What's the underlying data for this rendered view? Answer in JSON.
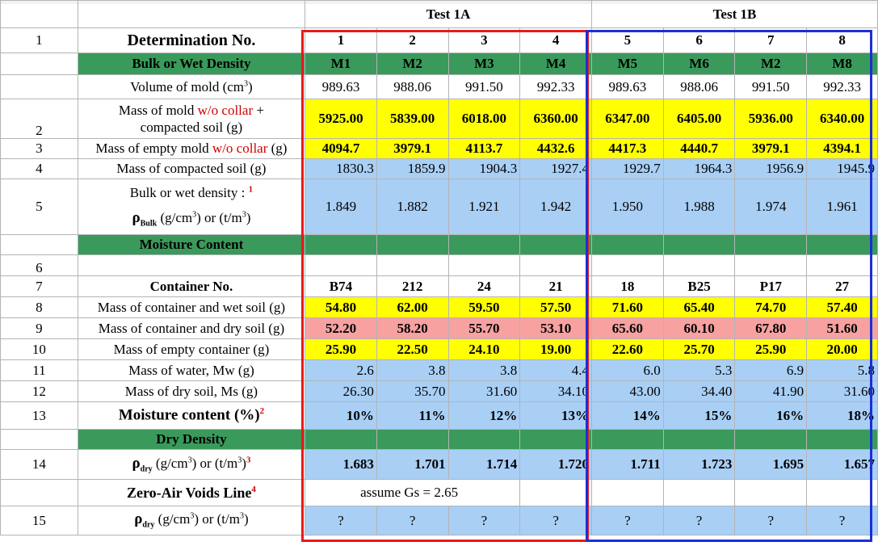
{
  "headers": {
    "test_a": "Test 1A",
    "test_b": "Test 1B",
    "row1_label": "Determination No.",
    "det_numbers": [
      "1",
      "2",
      "3",
      "4",
      "5",
      "6",
      "7",
      "8"
    ]
  },
  "bulk_section": {
    "title": "Bulk or Wet Density",
    "molds": [
      "M1",
      "M2",
      "M3",
      "M4",
      "M5",
      "M6",
      "M2",
      "M8"
    ],
    "volume_label": "Volume of mold (cm",
    "volume_unit_sup": "3",
    "volume_label_end": ")",
    "volumes": [
      "989.63",
      "988.06",
      "991.50",
      "992.33",
      "989.63",
      "988.06",
      "991.50",
      "992.33"
    ],
    "mass_mold_line1": "Mass of mold ",
    "mass_mold_red": "w/o collar",
    "mass_mold_line1_end": " +",
    "mass_mold_line2": "compacted soil (g)",
    "mass_mold_values": [
      "5925.00",
      "5839.00",
      "6018.00",
      "6360.00",
      "6347.00",
      "6405.00",
      "5936.00",
      "6340.00"
    ],
    "empty_mold_label": "Mass of empty mold ",
    "empty_mold_red": "w/o collar",
    "empty_mold_end": " (g)",
    "empty_mold_values": [
      "4094.7",
      "3979.1",
      "4113.7",
      "4432.6",
      "4417.3",
      "4440.7",
      "3979.1",
      "4394.1"
    ],
    "compacted_label": "Mass of compacted soil (g)",
    "compacted_values": [
      "1830.3",
      "1859.9",
      "1904.3",
      "1927.4",
      "1929.7",
      "1964.3",
      "1956.9",
      "1945.9"
    ],
    "density_label": "Bulk or wet density : ",
    "density_note": "1",
    "density_symbol": "ρ",
    "density_sub": "Bulk",
    "density_units": " (g/cm",
    "density_units_mid": ") or (t/m",
    "density_units_end": ")",
    "density_values": [
      "1.849",
      "1.882",
      "1.921",
      "1.942",
      "1.950",
      "1.988",
      "1.974",
      "1.961"
    ]
  },
  "moisture_section": {
    "title": "Moisture Content",
    "container_label": "Container No.",
    "containers": [
      "B74",
      "212",
      "24",
      "21",
      "18",
      "B25",
      "P17",
      "27"
    ],
    "wet_label": "Mass of container and wet soil (g)",
    "wet_values": [
      "54.80",
      "62.00",
      "59.50",
      "57.50",
      "71.60",
      "65.40",
      "74.70",
      "57.40"
    ],
    "dry_label": "Mass of container and dry soil (g)",
    "dry_values": [
      "52.20",
      "58.20",
      "55.70",
      "53.10",
      "65.60",
      "60.10",
      "67.80",
      "51.60"
    ],
    "empty_label": "Mass of empty container (g)",
    "empty_values": [
      "25.90",
      "22.50",
      "24.10",
      "19.00",
      "22.60",
      "25.70",
      "25.90",
      "20.00"
    ],
    "water_label": "Mass of water, Mw (g)",
    "water_values": [
      "2.6",
      "3.8",
      "3.8",
      "4.4",
      "6.0",
      "5.3",
      "6.9",
      "5.8"
    ],
    "drysoil_label": "Mass of dry soil, Ms (g)",
    "drysoil_values": [
      "26.30",
      "35.70",
      "31.60",
      "34.10",
      "43.00",
      "34.40",
      "41.90",
      "31.60"
    ],
    "mc_label": "Moisture content (%)",
    "mc_note": "2",
    "mc_values": [
      "10%",
      "11%",
      "12%",
      "13%",
      "14%",
      "15%",
      "16%",
      "18%"
    ]
  },
  "dry_section": {
    "title": "Dry Density",
    "symbol": "ρ",
    "sub": "dry",
    "units": " (g/cm",
    "units_mid": ") or (t/m",
    "units_end": ")",
    "note": "3",
    "values": [
      "1.683",
      "1.701",
      "1.714",
      "1.720",
      "1.711",
      "1.723",
      "1.695",
      "1.657"
    ]
  },
  "zav_section": {
    "title": "Zero-Air Voids Line",
    "note": "4",
    "assume_label": "assume Gs = ",
    "gs_value": "2.65",
    "symbol": "ρ",
    "sub": "dry",
    "units": " (g/cm",
    "units_mid": ") or (t/m",
    "units_end": ")",
    "values": [
      "?",
      "?",
      "?",
      "?",
      "?",
      "?",
      "?",
      "?"
    ]
  },
  "row_numbers": {
    "r1": "1",
    "r2": "2",
    "r3": "3",
    "r4": "4",
    "r5": "5",
    "r6": "6",
    "r7": "7",
    "r8": "8",
    "r9": "9",
    "r10": "10",
    "r11": "11",
    "r12": "12",
    "r13": "13",
    "r14": "14",
    "r15": "15"
  },
  "colors": {
    "green": "#3a9a5b",
    "yellow": "#ffff00",
    "blue": "#a9cff5",
    "pink": "#f7a1a1",
    "red_box": "#e8191c",
    "blue_box": "#1a2fd6"
  }
}
